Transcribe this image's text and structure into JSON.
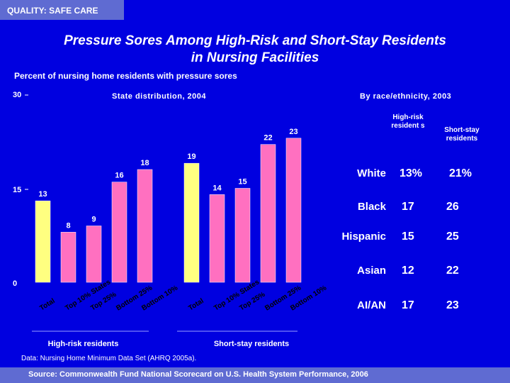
{
  "header": {
    "tag": "QUALITY: SAFE CARE"
  },
  "title_line1": "Pressure Sores Among High-Risk and Short-Stay Residents",
  "title_line2": "in Nursing Facilities",
  "subtitle": "Percent of nursing home residents with pressure sores",
  "left_section": "State distribution, 2004",
  "right_section": "By race/ethnicity, 2003",
  "colors": {
    "background": "#0000e0",
    "total_bar": "#ffff80",
    "other_bar": "#ff70c0",
    "band": "#5f6bd2"
  },
  "chart_data": {
    "type": "bar",
    "title": "State distribution, 2004",
    "ylabel": "Percent of nursing home residents with pressure sores",
    "ylim": [
      0,
      30
    ],
    "yticks": [
      "0",
      "15",
      "30"
    ],
    "groups": [
      {
        "name": "High-risk residents",
        "categories": [
          "Total",
          "Top 10% States",
          "Top 25%",
          "Bottom 25%",
          "Bottom 10%"
        ],
        "values": [
          13,
          8,
          9,
          16,
          18
        ],
        "labels": [
          "13",
          "8",
          "9",
          "16",
          "18"
        ]
      },
      {
        "name": "Short-stay residents",
        "categories": [
          "Total",
          "Top 10% States",
          "Top 25%",
          "Bottom 25%",
          "Bottom 10%"
        ],
        "values": [
          19,
          14,
          15,
          22,
          23
        ],
        "labels": [
          "19",
          "14",
          "15",
          "22",
          "23"
        ]
      }
    ]
  },
  "race_table": {
    "col1": "High-risk resident s",
    "col2": "Short-stay residents",
    "rows": [
      {
        "race": "White",
        "high_risk": "13%",
        "short_stay": "21%"
      },
      {
        "race": "Black",
        "high_risk": "17",
        "short_stay": "26"
      },
      {
        "race": "Hispanic",
        "high_risk": "15",
        "short_stay": "25"
      },
      {
        "race": "Asian",
        "high_risk": "12",
        "short_stay": "22"
      },
      {
        "race": "AI/AN",
        "high_risk": "17",
        "short_stay": "23"
      }
    ]
  },
  "data_note": "Data: Nursing Home Minimum Data Set (AHRQ 2005a).",
  "source": "Source: Commonwealth Fund National Scorecard on U.S. Health System Performance, 2006"
}
